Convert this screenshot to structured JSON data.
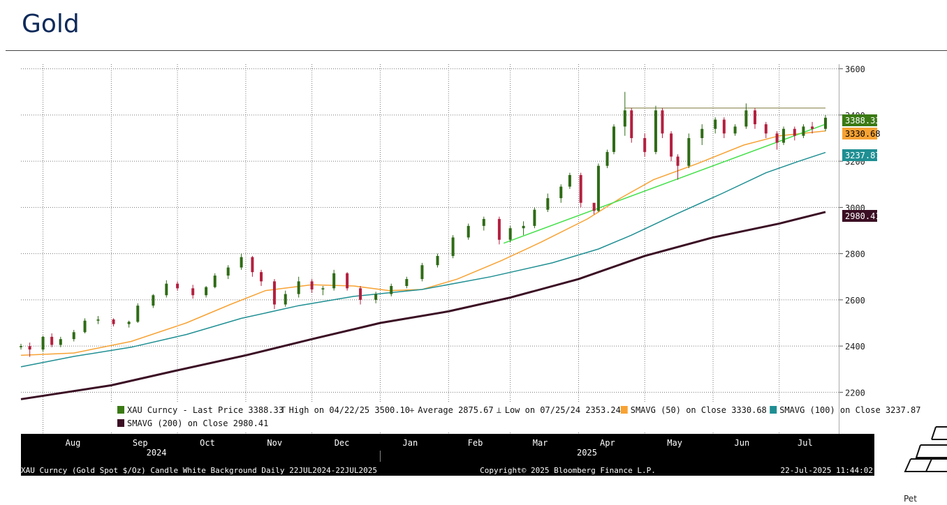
{
  "page": {
    "title": "Gold"
  },
  "chart_data": {
    "type": "candlestick",
    "y_axis": {
      "ticks": [
        2200,
        2400,
        2600,
        2800,
        3000,
        3200,
        3400,
        3600
      ],
      "ylim": [
        2020,
        3620
      ],
      "position": "right"
    },
    "x_axis": {
      "months": [
        "Aug",
        "Sep",
        "Oct",
        "Nov",
        "Dec",
        "Jan",
        "Feb",
        "Mar",
        "Apr",
        "May",
        "Jun",
        "Jul"
      ],
      "years": [
        "2024",
        "2025"
      ],
      "range": [
        "2024-07-22",
        "2025-07-22"
      ]
    },
    "last_values": [
      {
        "label": "3388.33",
        "value": 3388.33,
        "color": "#3b7a14",
        "text_color": "#ffffff"
      },
      {
        "label": "3330.68",
        "value": 3330.68,
        "color": "#f7a233",
        "text_color": "#000000"
      },
      {
        "label": "3237.87",
        "value": 3237.87,
        "color": "#1f8f93",
        "text_color": "#ffffff"
      },
      {
        "label": "2980.41",
        "value": 2980.41,
        "color": "#3b0f24",
        "text_color": "#ffffff"
      }
    ],
    "legend": [
      {
        "marker": "swatch",
        "color": "#3b7a14",
        "text": "XAU Curncy - Last Price 3388.33"
      },
      {
        "marker": "T",
        "color": "",
        "text": "High on 04/22/25 3500.10"
      },
      {
        "marker": "+",
        "color": "",
        "text": "Average 2875.67"
      },
      {
        "marker": "⊥",
        "color": "",
        "text": "Low on 07/25/24 2353.24"
      },
      {
        "marker": "swatch",
        "color": "#f7a233",
        "text": "SMAVG (50)  on Close 3330.68"
      },
      {
        "marker": "swatch",
        "color": "#1f8f93",
        "text": "SMAVG (100)  on Close 3237.87"
      },
      {
        "marker": "swatch",
        "color": "#3b0f24",
        "text": "SMAVG (200)  on Close  2980.41"
      }
    ],
    "series": [
      {
        "name": "XAU Curncy - Last Price",
        "kind": "candles",
        "up_color": "#2f6b16",
        "down_color": "#b3203f",
        "points": [
          [
            "2024-07-22",
            2395,
            2410,
            2385,
            2400
          ],
          [
            "2024-07-26",
            2400,
            2415,
            2353,
            2385
          ],
          [
            "2024-08-01",
            2385,
            2445,
            2375,
            2440
          ],
          [
            "2024-08-05",
            2440,
            2455,
            2395,
            2405
          ],
          [
            "2024-08-09",
            2405,
            2440,
            2395,
            2430
          ],
          [
            "2024-08-15",
            2430,
            2470,
            2420,
            2460
          ],
          [
            "2024-08-20",
            2460,
            2520,
            2455,
            2510
          ],
          [
            "2024-08-26",
            2510,
            2530,
            2495,
            2515
          ],
          [
            "2024-09-02",
            2515,
            2520,
            2485,
            2495
          ],
          [
            "2024-09-09",
            2495,
            2510,
            2480,
            2505
          ],
          [
            "2024-09-13",
            2505,
            2585,
            2500,
            2575
          ],
          [
            "2024-09-20",
            2575,
            2625,
            2565,
            2620
          ],
          [
            "2024-09-26",
            2620,
            2685,
            2610,
            2670
          ],
          [
            "2024-10-01",
            2670,
            2680,
            2640,
            2650
          ],
          [
            "2024-10-08",
            2650,
            2665,
            2605,
            2620
          ],
          [
            "2024-10-14",
            2620,
            2660,
            2610,
            2655
          ],
          [
            "2024-10-18",
            2655,
            2715,
            2650,
            2705
          ],
          [
            "2024-10-24",
            2705,
            2750,
            2690,
            2740
          ],
          [
            "2024-10-30",
            2740,
            2800,
            2730,
            2785
          ],
          [
            "2024-11-04",
            2785,
            2790,
            2700,
            2720
          ],
          [
            "2024-11-08",
            2720,
            2730,
            2660,
            2680
          ],
          [
            "2024-11-14",
            2680,
            2690,
            2560,
            2580
          ],
          [
            "2024-11-19",
            2580,
            2640,
            2570,
            2625
          ],
          [
            "2024-11-25",
            2625,
            2700,
            2610,
            2680
          ],
          [
            "2024-12-01",
            2680,
            2690,
            2630,
            2645
          ],
          [
            "2024-12-06",
            2645,
            2660,
            2620,
            2650
          ],
          [
            "2024-12-11",
            2650,
            2730,
            2640,
            2715
          ],
          [
            "2024-12-17",
            2715,
            2720,
            2640,
            2650
          ],
          [
            "2024-12-23",
            2650,
            2660,
            2580,
            2600
          ],
          [
            "2024-12-30",
            2600,
            2635,
            2585,
            2625
          ],
          [
            "2025-01-06",
            2625,
            2670,
            2615,
            2660
          ],
          [
            "2025-01-13",
            2660,
            2700,
            2650,
            2690
          ],
          [
            "2025-01-20",
            2690,
            2760,
            2680,
            2750
          ],
          [
            "2025-01-27",
            2750,
            2800,
            2740,
            2790
          ],
          [
            "2025-02-03",
            2790,
            2880,
            2780,
            2870
          ],
          [
            "2025-02-10",
            2870,
            2930,
            2860,
            2920
          ],
          [
            "2025-02-17",
            2920,
            2960,
            2900,
            2950
          ],
          [
            "2025-02-24",
            2950,
            2960,
            2840,
            2860
          ],
          [
            "2025-03-01",
            2860,
            2920,
            2850,
            2910
          ],
          [
            "2025-03-07",
            2910,
            2940,
            2880,
            2920
          ],
          [
            "2025-03-12",
            2920,
            3000,
            2910,
            2990
          ],
          [
            "2025-03-18",
            2990,
            3060,
            2980,
            3040
          ],
          [
            "2025-03-24",
            3040,
            3100,
            3020,
            3090
          ],
          [
            "2025-03-28",
            3090,
            3150,
            3080,
            3140
          ],
          [
            "2025-04-02",
            3140,
            3150,
            3000,
            3020
          ],
          [
            "2025-04-08",
            3020,
            2990,
            2970,
            2985
          ],
          [
            "2025-04-10",
            2985,
            3190,
            2980,
            3180
          ],
          [
            "2025-04-14",
            3180,
            3250,
            3170,
            3240
          ],
          [
            "2025-04-17",
            3240,
            3360,
            3230,
            3350
          ],
          [
            "2025-04-22",
            3350,
            3500,
            3310,
            3420
          ],
          [
            "2025-04-25",
            3420,
            3430,
            3280,
            3300
          ],
          [
            "2025-05-01",
            3300,
            3320,
            3220,
            3240
          ],
          [
            "2025-05-06",
            3240,
            3440,
            3230,
            3420
          ],
          [
            "2025-05-09",
            3420,
            3430,
            3300,
            3320
          ],
          [
            "2025-05-13",
            3320,
            3330,
            3200,
            3220
          ],
          [
            "2025-05-16",
            3220,
            3230,
            3120,
            3180
          ],
          [
            "2025-05-21",
            3180,
            3320,
            3170,
            3300
          ],
          [
            "2025-05-27",
            3300,
            3360,
            3270,
            3340
          ],
          [
            "2025-06-02",
            3340,
            3390,
            3320,
            3380
          ],
          [
            "2025-06-06",
            3380,
            3390,
            3300,
            3320
          ],
          [
            "2025-06-11",
            3320,
            3360,
            3310,
            3350
          ],
          [
            "2025-06-16",
            3350,
            3450,
            3340,
            3420
          ],
          [
            "2025-06-20",
            3420,
            3430,
            3340,
            3360
          ],
          [
            "2025-06-25",
            3360,
            3370,
            3300,
            3320
          ],
          [
            "2025-06-30",
            3320,
            3330,
            3250,
            3280
          ],
          [
            "2025-07-03",
            3280,
            3350,
            3270,
            3340
          ],
          [
            "2025-07-08",
            3340,
            3350,
            3290,
            3310
          ],
          [
            "2025-07-12",
            3310,
            3360,
            3300,
            3350
          ],
          [
            "2025-07-16",
            3350,
            3370,
            3320,
            3340
          ],
          [
            "2025-07-22",
            3340,
            3400,
            3330,
            3388
          ]
        ]
      },
      {
        "name": "SMAVG (50)",
        "kind": "line",
        "color": "#f7a233",
        "points": [
          [
            "2024-07-22",
            2360
          ],
          [
            "2024-08-15",
            2370
          ],
          [
            "2024-09-10",
            2420
          ],
          [
            "2024-10-05",
            2500
          ],
          [
            "2024-10-25",
            2580
          ],
          [
            "2024-11-10",
            2640
          ],
          [
            "2024-12-01",
            2665
          ],
          [
            "2024-12-20",
            2660
          ],
          [
            "2025-01-05",
            2640
          ],
          [
            "2025-01-20",
            2645
          ],
          [
            "2025-02-05",
            2690
          ],
          [
            "2025-02-25",
            2770
          ],
          [
            "2025-03-15",
            2850
          ],
          [
            "2025-04-05",
            2950
          ],
          [
            "2025-04-20",
            3040
          ],
          [
            "2025-05-05",
            3120
          ],
          [
            "2025-05-25",
            3190
          ],
          [
            "2025-06-15",
            3270
          ],
          [
            "2025-07-01",
            3310
          ],
          [
            "2025-07-22",
            3330.68
          ]
        ]
      },
      {
        "name": "SMAVG (100)",
        "kind": "line",
        "color": "#1f8f93",
        "points": [
          [
            "2024-07-22",
            2310
          ],
          [
            "2024-08-15",
            2355
          ],
          [
            "2024-09-10",
            2395
          ],
          [
            "2024-10-05",
            2450
          ],
          [
            "2024-10-30",
            2520
          ],
          [
            "2024-11-25",
            2575
          ],
          [
            "2024-12-20",
            2615
          ],
          [
            "2025-01-20",
            2645
          ],
          [
            "2025-02-20",
            2700
          ],
          [
            "2025-03-20",
            2760
          ],
          [
            "2025-04-10",
            2820
          ],
          [
            "2025-04-25",
            2880
          ],
          [
            "2025-05-15",
            2970
          ],
          [
            "2025-06-05",
            3060
          ],
          [
            "2025-06-25",
            3150
          ],
          [
            "2025-07-10",
            3200
          ],
          [
            "2025-07-22",
            3237.87
          ]
        ]
      },
      {
        "name": "SMAVG (200)",
        "kind": "line",
        "color": "#3b0f24",
        "points": [
          [
            "2024-07-22",
            2170
          ],
          [
            "2024-09-01",
            2230
          ],
          [
            "2024-10-01",
            2295
          ],
          [
            "2024-11-01",
            2360
          ],
          [
            "2024-12-01",
            2430
          ],
          [
            "2025-01-01",
            2500
          ],
          [
            "2025-02-01",
            2550
          ],
          [
            "2025-03-01",
            2610
          ],
          [
            "2025-04-01",
            2690
          ],
          [
            "2025-05-01",
            2790
          ],
          [
            "2025-06-01",
            2870
          ],
          [
            "2025-07-01",
            2930
          ],
          [
            "2025-07-22",
            2980.41
          ]
        ]
      },
      {
        "name": "",
        "kind": "line",
        "color": "#44e04a",
        "points": [
          [
            "2025-02-26",
            2845
          ],
          [
            "2025-07-22",
            3360
          ]
        ]
      },
      {
        "name": "",
        "kind": "line",
        "color": "#a7a57a",
        "points": [
          [
            "2025-04-22",
            3430
          ],
          [
            "2025-07-22",
            3430
          ]
        ]
      }
    ],
    "footer": {
      "left": "XAU Curncy (Gold Spot  $/Oz) Candle White Background  Daily 22JUL2024-22JUL2025",
      "center": "Copyright© 2025 Bloomberg Finance L.P.",
      "right": "22-Jul-2025 11:44:02"
    }
  },
  "logo": {
    "icon": "gold-bars-icon",
    "caption": "Pet"
  }
}
